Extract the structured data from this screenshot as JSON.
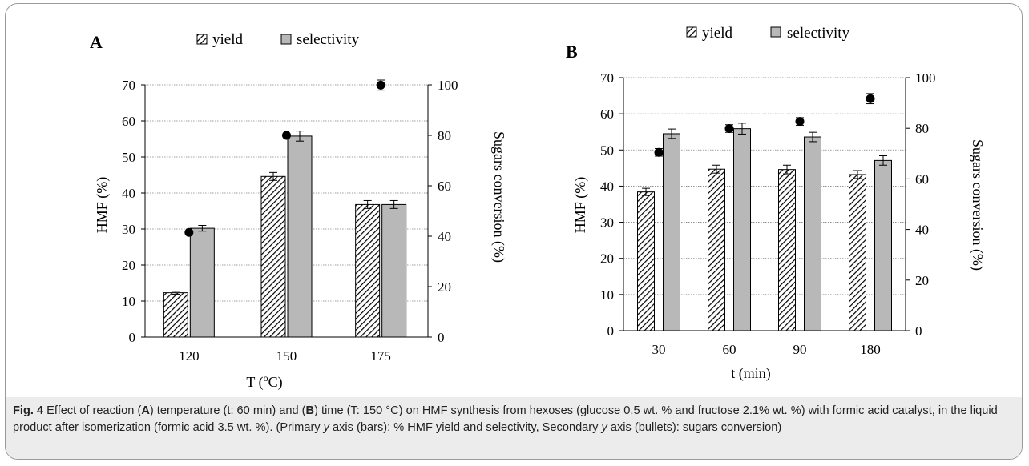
{
  "chart_data": [
    {
      "panel_label": "A",
      "type": "bar",
      "categories": [
        "120",
        "150",
        "175"
      ],
      "xlabel": "T (°C)",
      "xlabel_main": "T (",
      "xlabel_sup": "o",
      "xlabel_tail": "C)",
      "ylabel": "HMF (%)",
      "y2label": "Sugars conversion (%)",
      "ylim": [
        0,
        70
      ],
      "y2lim": [
        0,
        100
      ],
      "yticks": [
        "0",
        "10",
        "20",
        "30",
        "40",
        "50",
        "60",
        "70"
      ],
      "y2ticks": [
        "0",
        "20",
        "40",
        "60",
        "80",
        "100"
      ],
      "grid": true,
      "legend_position": "top",
      "series": [
        {
          "name": "yield",
          "style": "hatched",
          "axis": "primary",
          "values": [
            12.3,
            44.6,
            36.8
          ],
          "errors": [
            0.4,
            1.1,
            1.1
          ]
        },
        {
          "name": "selectivity",
          "style": "gray",
          "axis": "primary",
          "values": [
            30.2,
            55.8,
            36.8
          ],
          "errors": [
            0.8,
            1.4,
            1.1
          ]
        },
        {
          "name": "sugars conversion",
          "style": "bullet",
          "axis": "secondary",
          "values": [
            41.5,
            80.0,
            99.9
          ],
          "errors": [
            0,
            0,
            2.0
          ]
        }
      ]
    },
    {
      "panel_label": "B",
      "type": "bar",
      "categories": [
        "30",
        "60",
        "90",
        "180"
      ],
      "xlabel": "t (min)",
      "ylabel": "HMF (%)",
      "y2label": "Sugars conversion (%)",
      "ylim": [
        0,
        70
      ],
      "y2lim": [
        0,
        100
      ],
      "yticks": [
        "0",
        "10",
        "20",
        "30",
        "40",
        "50",
        "60",
        "70"
      ],
      "y2ticks": [
        "0",
        "20",
        "40",
        "60",
        "80",
        "100"
      ],
      "grid": true,
      "legend_position": "top",
      "series": [
        {
          "name": "yield",
          "style": "hatched",
          "axis": "primary",
          "values": [
            38.4,
            44.7,
            44.6,
            43.2
          ],
          "errors": [
            1.0,
            1.1,
            1.2,
            1.1
          ]
        },
        {
          "name": "selectivity",
          "style": "gray",
          "axis": "primary",
          "values": [
            54.5,
            55.9,
            53.6,
            47.1
          ],
          "errors": [
            1.3,
            1.5,
            1.3,
            1.3
          ]
        },
        {
          "name": "sugars conversion",
          "style": "bullet",
          "axis": "secondary",
          "values": [
            70.5,
            79.9,
            82.7,
            91.7
          ],
          "errors": [
            1.5,
            1.5,
            1.5,
            2.0
          ]
        }
      ]
    }
  ],
  "legend": {
    "yield": "yield",
    "selectivity": "selectivity"
  },
  "colors": {
    "selectivity_fill": "#b8b8b8",
    "bar_stroke": "#000000",
    "grid": "#808080",
    "caption_bg": "#ececec"
  },
  "caption": {
    "fig_label": "Fig. 4",
    "t1": "  Effect of reaction (",
    "b1": "A",
    "t2": ") temperature (t: 60 min) and (",
    "b2": "B",
    "t3": ") time (T: 150 °C) on HMF synthesis from hexoses (glucose 0.5 wt. % and fructose 2.1% wt. %) with formic acid catalyst, in the liquid product after isomerization (formic acid 3.5 wt. %). (Primary ",
    "i1": "y",
    "t4": " axis (bars): % HMF yield and selectivity, Secondary ",
    "i2": "y",
    "t5": " axis (bullets): sugars conversion)"
  }
}
